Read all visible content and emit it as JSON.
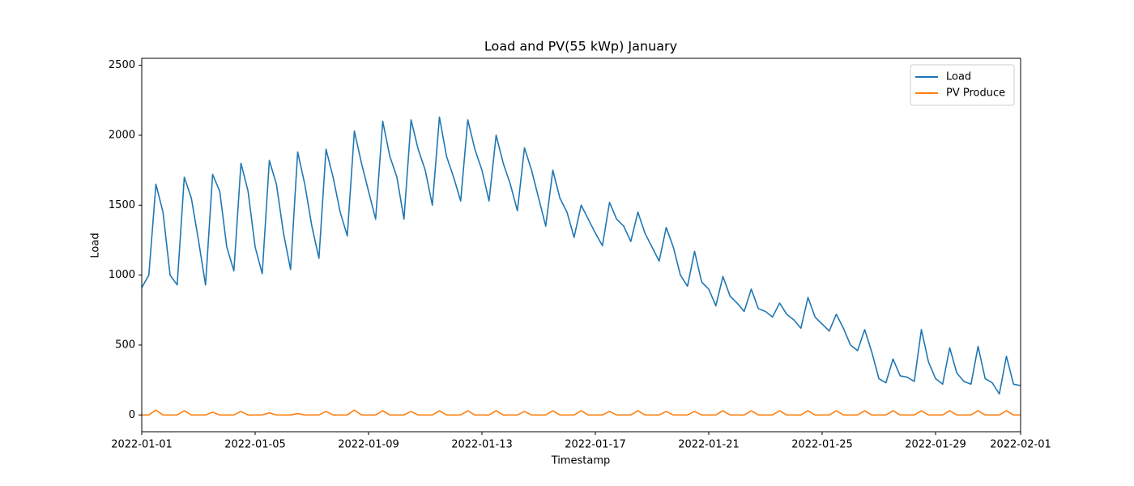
{
  "chart_data": {
    "type": "line",
    "title": "Load and PV(55 kWp) January",
    "x_label": "Timestamp",
    "y_label": "Load",
    "xlim": [
      0,
      31
    ],
    "ylim": [
      -120,
      2550
    ],
    "xticks": [
      {
        "value": 0,
        "label": "2022-01-01"
      },
      {
        "value": 4,
        "label": "2022-01-05"
      },
      {
        "value": 8,
        "label": "2022-01-09"
      },
      {
        "value": 12,
        "label": "2022-01-13"
      },
      {
        "value": 16,
        "label": "2022-01-17"
      },
      {
        "value": 20,
        "label": "2022-01-21"
      },
      {
        "value": 24,
        "label": "2022-01-25"
      },
      {
        "value": 28,
        "label": "2022-01-29"
      },
      {
        "value": 31,
        "label": "2022-02-01"
      }
    ],
    "yticks": [
      0,
      500,
      1000,
      1500,
      2000,
      2500
    ],
    "grid": false,
    "legend": "upper right",
    "x": [
      0,
      0.25,
      0.5,
      0.75,
      1,
      1.25,
      1.5,
      1.75,
      2,
      2.25,
      2.5,
      2.75,
      3,
      3.25,
      3.5,
      3.75,
      4,
      4.25,
      4.5,
      4.75,
      5,
      5.25,
      5.5,
      5.75,
      6,
      6.25,
      6.5,
      6.75,
      7,
      7.25,
      7.5,
      7.75,
      8,
      8.25,
      8.5,
      8.75,
      9,
      9.25,
      9.5,
      9.75,
      10,
      10.25,
      10.5,
      10.75,
      11,
      11.25,
      11.5,
      11.75,
      12,
      12.25,
      12.5,
      12.75,
      13,
      13.25,
      13.5,
      13.75,
      14,
      14.25,
      14.5,
      14.75,
      15,
      15.25,
      15.5,
      15.75,
      16,
      16.25,
      16.5,
      16.75,
      17,
      17.25,
      17.5,
      17.75,
      18,
      18.25,
      18.5,
      18.75,
      19,
      19.25,
      19.5,
      19.75,
      20,
      20.25,
      20.5,
      20.75,
      21,
      21.25,
      21.5,
      21.75,
      22,
      22.25,
      22.5,
      22.75,
      23,
      23.25,
      23.5,
      23.75,
      24,
      24.25,
      24.5,
      24.75,
      25,
      25.25,
      25.5,
      25.75,
      26,
      26.25,
      26.5,
      26.75,
      27,
      27.25,
      27.5,
      27.75,
      28,
      28.25,
      28.5,
      28.75,
      29,
      29.25,
      29.5,
      29.75,
      30,
      30.25,
      30.5,
      30.75,
      31
    ],
    "series": [
      {
        "name": "Load",
        "color": "#1f77b4",
        "values": [
          910,
          1000,
          1650,
          1450,
          1000,
          930,
          1700,
          1550,
          1250,
          930,
          1720,
          1600,
          1200,
          1030,
          1800,
          1600,
          1200,
          1010,
          1820,
          1650,
          1300,
          1040,
          1880,
          1650,
          1350,
          1120,
          1900,
          1700,
          1450,
          1280,
          2030,
          1800,
          1600,
          1400,
          2100,
          1850,
          1700,
          1400,
          2110,
          1900,
          1750,
          1500,
          2130,
          1850,
          1700,
          1530,
          2110,
          1900,
          1750,
          1530,
          2000,
          1800,
          1650,
          1460,
          1910,
          1750,
          1550,
          1350,
          1750,
          1550,
          1450,
          1270,
          1500,
          1400,
          1300,
          1210,
          1520,
          1400,
          1350,
          1240,
          1450,
          1300,
          1200,
          1100,
          1340,
          1200,
          1000,
          920,
          1170,
          950,
          900,
          780,
          990,
          850,
          800,
          740,
          900,
          760,
          740,
          700,
          800,
          720,
          680,
          620,
          840,
          700,
          650,
          600,
          720,
          620,
          500,
          460,
          610,
          450,
          260,
          230,
          400,
          280,
          270,
          240,
          610,
          380,
          260,
          220,
          480,
          300,
          240,
          220,
          490,
          260,
          230,
          150,
          420,
          220,
          210
        ]
      },
      {
        "name": "PV Produce",
        "color": "#ff7f0e",
        "values": [
          0,
          0,
          35,
          0,
          0,
          0,
          30,
          0,
          0,
          0,
          20,
          0,
          0,
          0,
          25,
          0,
          0,
          0,
          15,
          0,
          0,
          0,
          10,
          0,
          0,
          0,
          25,
          0,
          0,
          0,
          35,
          0,
          0,
          0,
          30,
          0,
          0,
          0,
          25,
          0,
          0,
          0,
          30,
          0,
          0,
          0,
          30,
          0,
          0,
          0,
          30,
          0,
          0,
          0,
          25,
          0,
          0,
          0,
          30,
          0,
          0,
          0,
          30,
          0,
          0,
          0,
          25,
          0,
          0,
          0,
          30,
          0,
          0,
          0,
          25,
          0,
          0,
          0,
          25,
          0,
          0,
          0,
          30,
          0,
          0,
          0,
          30,
          0,
          0,
          0,
          30,
          0,
          0,
          0,
          30,
          0,
          0,
          0,
          30,
          0,
          0,
          0,
          30,
          0,
          0,
          0,
          30,
          0,
          0,
          0,
          30,
          0,
          0,
          0,
          30,
          0,
          0,
          0,
          30,
          0,
          0,
          0,
          30,
          0,
          0
        ]
      }
    ]
  }
}
